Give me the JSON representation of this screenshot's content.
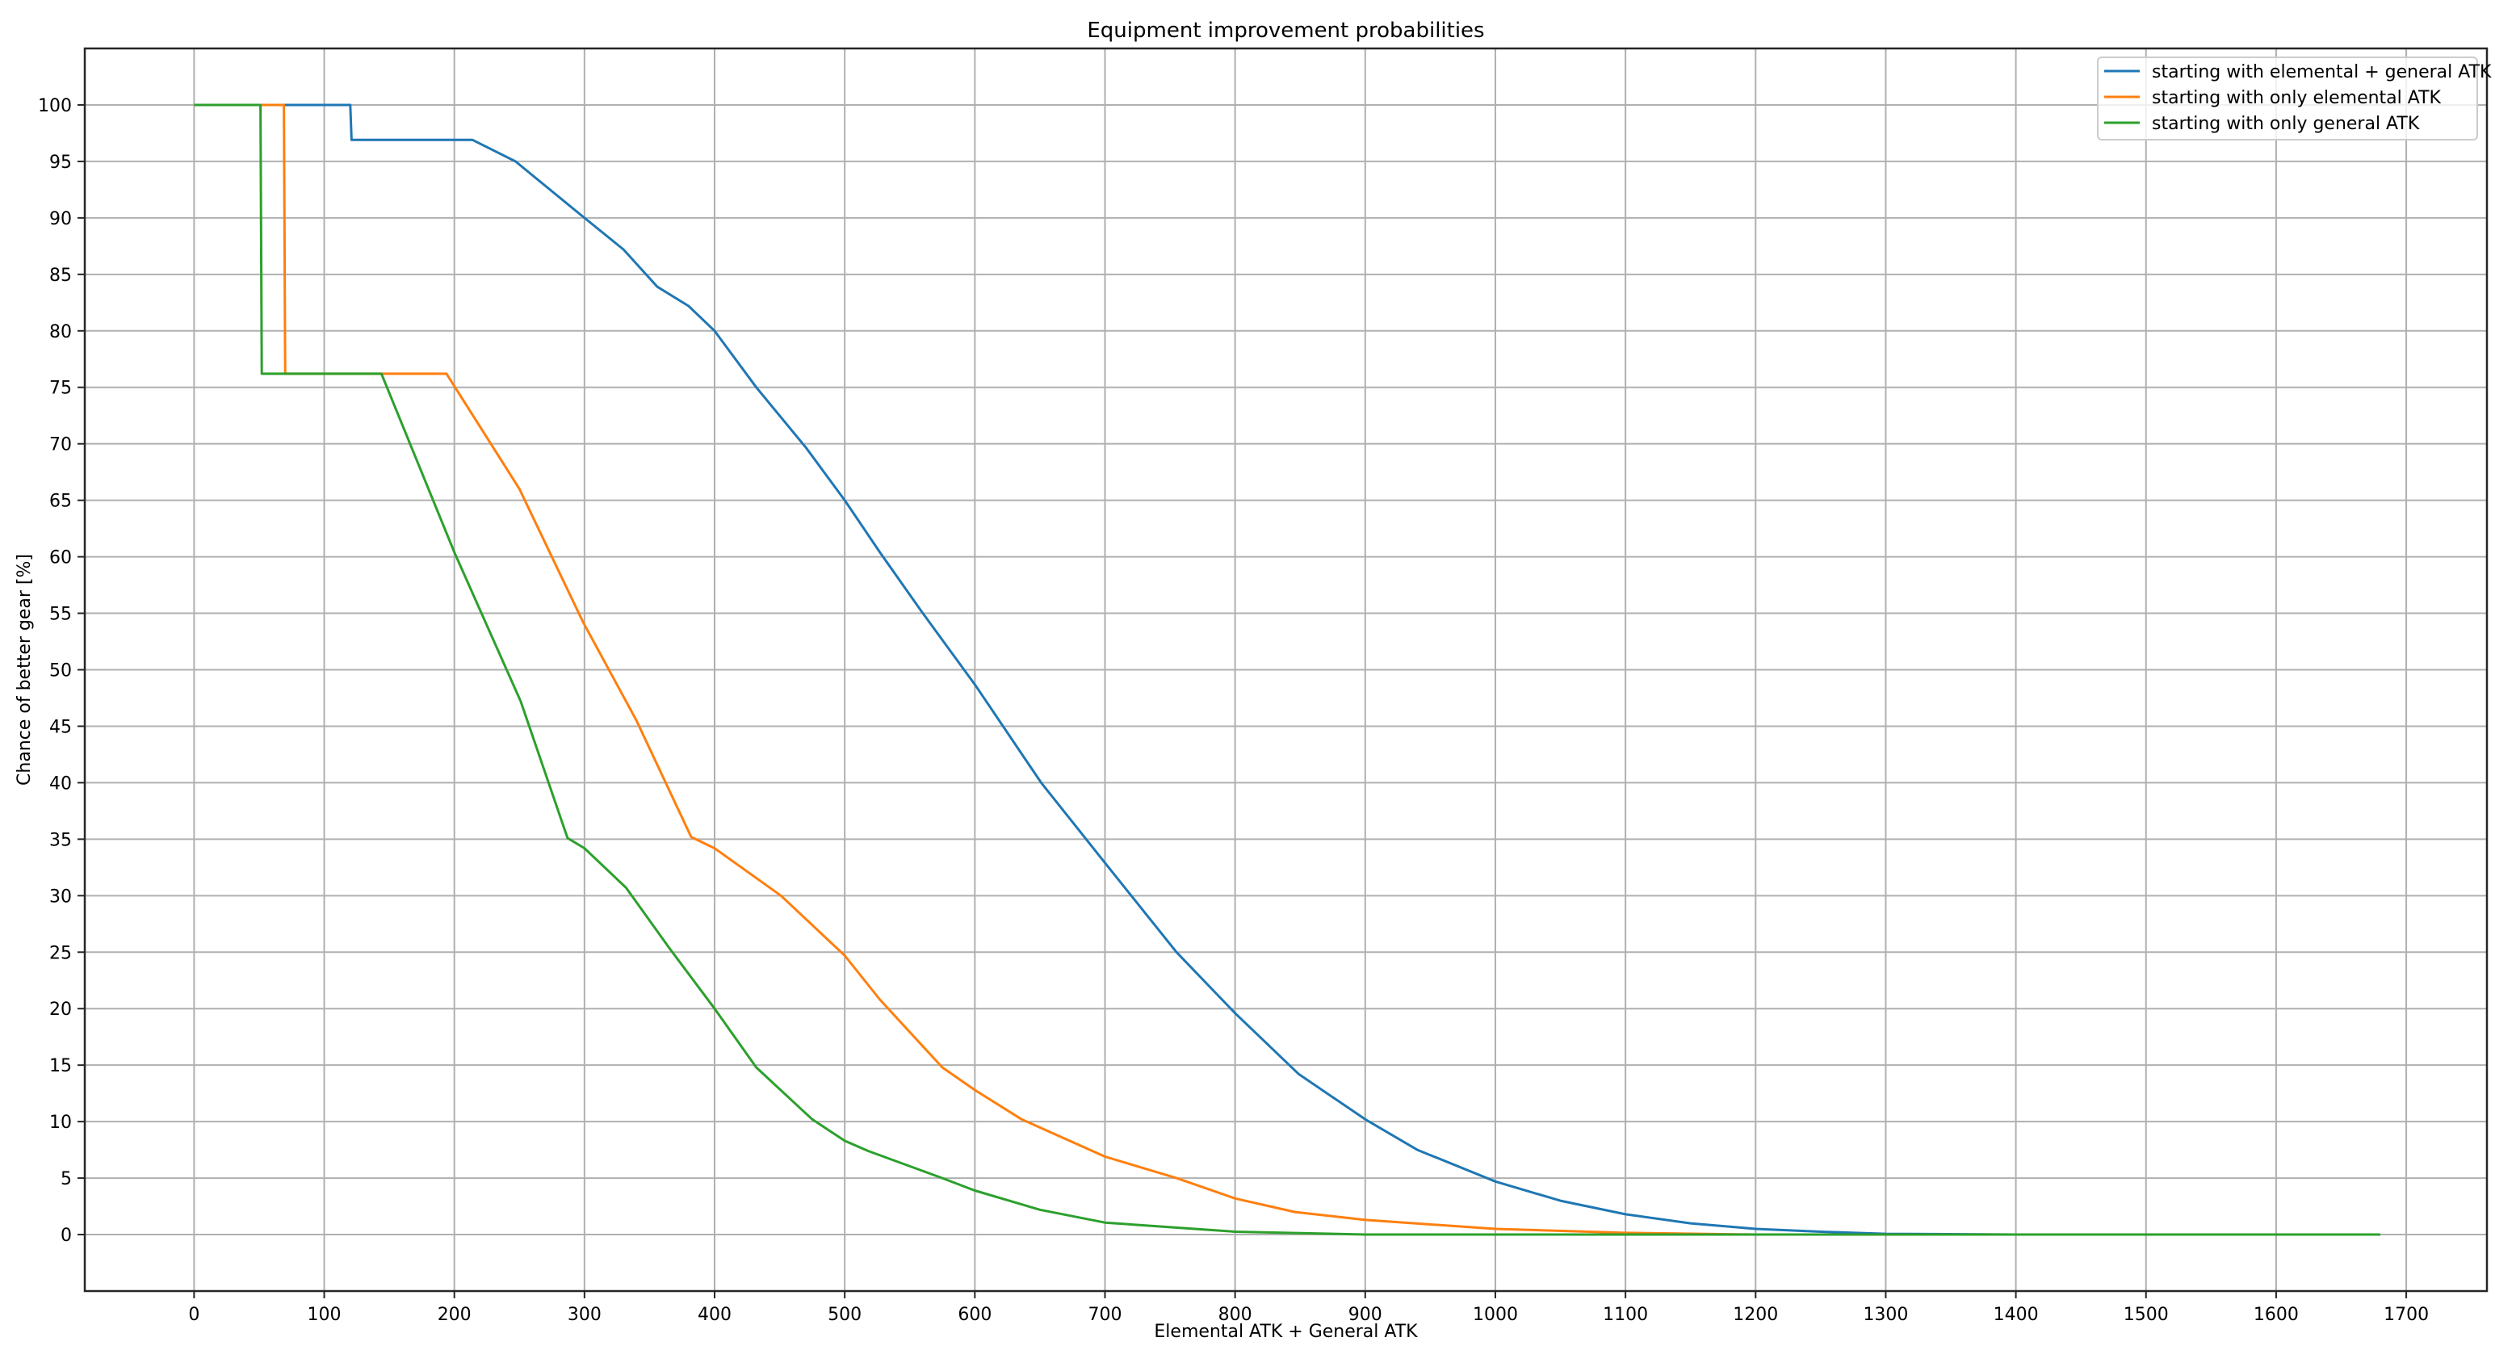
{
  "chart_data": {
    "type": "line",
    "title": "Equipment improvement probabilities",
    "xlabel": "Elemental ATK + General ATK",
    "ylabel": "Chance of better gear [%]",
    "xlim": [
      -84,
      1762
    ],
    "ylim": [
      -5,
      105
    ],
    "xticks": [
      0,
      100,
      200,
      300,
      400,
      500,
      600,
      700,
      800,
      900,
      1000,
      1100,
      1200,
      1300,
      1400,
      1500,
      1600,
      1700
    ],
    "yticks": [
      0,
      5,
      10,
      15,
      20,
      25,
      30,
      35,
      40,
      45,
      50,
      55,
      60,
      65,
      70,
      75,
      80,
      85,
      90,
      95,
      100
    ],
    "grid": true,
    "legend_position": "top-right",
    "series": [
      {
        "name": "starting with elemental + general ATK",
        "color": "#1f77b4",
        "points": [
          [
            0,
            100
          ],
          [
            120,
            100
          ],
          [
            121,
            96.9
          ],
          [
            214,
            96.9
          ],
          [
            247,
            95.0
          ],
          [
            300,
            90
          ],
          [
            330,
            87.2
          ],
          [
            356,
            83.9
          ],
          [
            380,
            82.2
          ],
          [
            400,
            80
          ],
          [
            432,
            75
          ],
          [
            470,
            69.7
          ],
          [
            500,
            65
          ],
          [
            527,
            60.4
          ],
          [
            560,
            55
          ],
          [
            600,
            48.7
          ],
          [
            651,
            40
          ],
          [
            700,
            32.9
          ],
          [
            755,
            25
          ],
          [
            800,
            19.6
          ],
          [
            849,
            14.2
          ],
          [
            900,
            10.2
          ],
          [
            940,
            7.5
          ],
          [
            1000,
            4.7
          ],
          [
            1050,
            3.0
          ],
          [
            1100,
            1.8
          ],
          [
            1150,
            1.0
          ],
          [
            1200,
            0.5
          ],
          [
            1250,
            0.25
          ],
          [
            1300,
            0.07
          ],
          [
            1400,
            0
          ],
          [
            1680,
            0
          ]
        ]
      },
      {
        "name": "starting with only elemental ATK",
        "color": "#ff7f0e",
        "points": [
          [
            0,
            100
          ],
          [
            69,
            100
          ],
          [
            70,
            76.2
          ],
          [
            194,
            76.2
          ],
          [
            250,
            66
          ],
          [
            299,
            54.2
          ],
          [
            340,
            45.5
          ],
          [
            382,
            35.2
          ],
          [
            400,
            34.2
          ],
          [
            451,
            30
          ],
          [
            500,
            24.7
          ],
          [
            527,
            20.8
          ],
          [
            575,
            14.8
          ],
          [
            600,
            12.8
          ],
          [
            636,
            10.2
          ],
          [
            700,
            6.9
          ],
          [
            755,
            5.0
          ],
          [
            800,
            3.2
          ],
          [
            846,
            2.0
          ],
          [
            900,
            1.3
          ],
          [
            1000,
            0.5
          ],
          [
            1100,
            0.15
          ],
          [
            1200,
            0
          ],
          [
            1680,
            0
          ]
        ]
      },
      {
        "name": "starting with only general ATK",
        "color": "#2ca02c",
        "points": [
          [
            0,
            100
          ],
          [
            51,
            100
          ],
          [
            52,
            76.2
          ],
          [
            144,
            76.2
          ],
          [
            200,
            60.4
          ],
          [
            251,
            47.2
          ],
          [
            287,
            35.1
          ],
          [
            300,
            34.2
          ],
          [
            332,
            30.7
          ],
          [
            365,
            25.4
          ],
          [
            400,
            20
          ],
          [
            432,
            14.8
          ],
          [
            475,
            10.2
          ],
          [
            500,
            8.3
          ],
          [
            518,
            7.4
          ],
          [
            575,
            5
          ],
          [
            600,
            3.9
          ],
          [
            650,
            2.2
          ],
          [
            700,
            1.06
          ],
          [
            800,
            0.25
          ],
          [
            900,
            0
          ],
          [
            1680,
            0
          ]
        ]
      }
    ]
  }
}
